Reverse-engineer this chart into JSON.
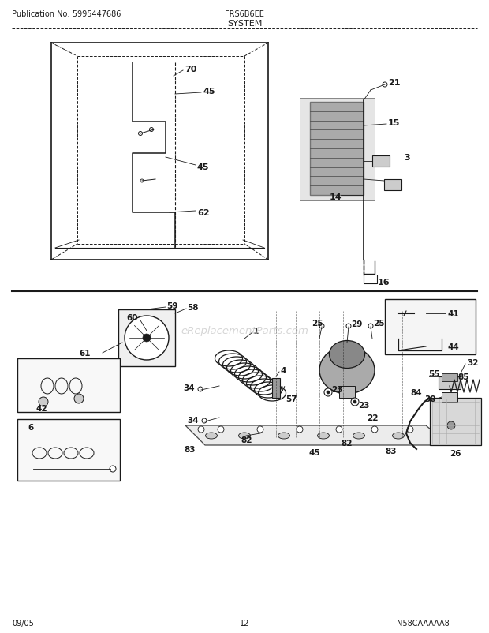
{
  "title": "SYSTEM",
  "pub_no": "Publication No: 5995447686",
  "model": "FRS6B6EE",
  "date": "09/05",
  "page": "12",
  "diagram_id": "N58CAAAAA8",
  "bg_color": "#ffffff",
  "line_color": "#1a1a1a",
  "gray": "#555555",
  "lightgray": "#bbbbbb",
  "watermark": "eReplacementParts.com",
  "fig_w": 6.2,
  "fig_h": 8.03,
  "dpi": 100
}
